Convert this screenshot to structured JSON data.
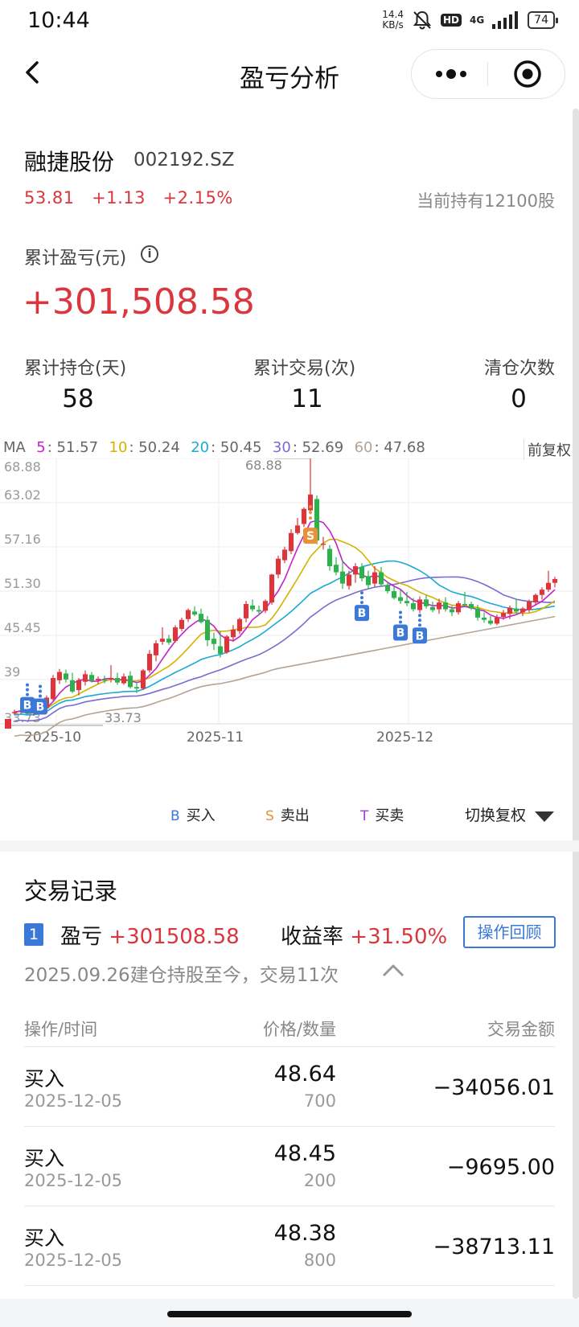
{
  "status_bar": {
    "time": "10:44",
    "speed": "14.4",
    "speed_unit": "KB/s",
    "hd": "HD",
    "network": "4G",
    "battery": "74"
  },
  "nav": {
    "title": "盈亏分析",
    "icons": [
      "back-chevron-icon",
      "more-dots-icon",
      "target-icon"
    ]
  },
  "stock": {
    "name": "融捷股份",
    "code": "002192.SZ",
    "price": "53.81",
    "change": "+1.13",
    "change_pct": "+2.15%",
    "holding": "当前持有12100股"
  },
  "pnl": {
    "label": "累计盈亏(元)",
    "info_glyph": "i",
    "value": "+301,508.58"
  },
  "stats": [
    {
      "label": "累计持仓(天)",
      "value": "58"
    },
    {
      "label": "累计交易(次)",
      "value": "11"
    },
    {
      "label": "清仓次数",
      "value": "0"
    }
  ],
  "ma": {
    "prefix": "MA",
    "items": [
      {
        "key": "5",
        "value": "51.57",
        "color": "#c71fcf"
      },
      {
        "key": "10",
        "value": "50.24",
        "color": "#d4b200"
      },
      {
        "key": "20",
        "value": "50.45",
        "color": "#1ba9d6"
      },
      {
        "key": "30",
        "value": "52.69",
        "color": "#7a6bd1"
      },
      {
        "key": "60",
        "value": "47.68",
        "color": "#b3a395"
      }
    ],
    "adjust": "前复权"
  },
  "chart_data": {
    "type": "candlestick",
    "y_ticks": [
      "68.88",
      "63.02",
      "57.16",
      "51.30",
      "45.45",
      "39",
      "33.73"
    ],
    "ylim": [
      33.73,
      68.88
    ],
    "x_ticks": [
      "2025-10",
      "2025-11",
      "2025-12"
    ],
    "max_label": "68.88",
    "min_label": "33.73",
    "colors": {
      "up": "#e0333a",
      "down": "#2bb34b"
    },
    "candles": [
      [
        35.2,
        35.6,
        34.9,
        35.3
      ],
      [
        35.3,
        35.8,
        35.0,
        35.5
      ],
      [
        35.4,
        35.7,
        35.0,
        35.1
      ],
      [
        35.1,
        35.6,
        34.8,
        35.4
      ],
      [
        35.3,
        36.0,
        35.1,
        35.9
      ],
      [
        35.8,
        37.5,
        35.6,
        37.2
      ],
      [
        37.0,
        40.2,
        36.8,
        39.8
      ],
      [
        39.5,
        41.0,
        39.0,
        40.6
      ],
      [
        40.4,
        40.9,
        39.2,
        39.6
      ],
      [
        39.5,
        40.5,
        37.8,
        38.0
      ],
      [
        38.2,
        39.8,
        37.5,
        39.5
      ],
      [
        39.3,
        40.8,
        38.8,
        40.3
      ],
      [
        40.2,
        40.6,
        39.2,
        39.4
      ],
      [
        39.5,
        40.0,
        39.0,
        39.7
      ],
      [
        39.6,
        40.1,
        39.1,
        39.5
      ],
      [
        39.6,
        41.5,
        39.2,
        39.8
      ],
      [
        39.8,
        40.5,
        38.9,
        39.2
      ],
      [
        39.1,
        40.4,
        38.9,
        40.0
      ],
      [
        40.1,
        40.7,
        38.4,
        38.6
      ],
      [
        38.6,
        39.2,
        37.8,
        38.4
      ],
      [
        38.4,
        41.0,
        38.2,
        40.8
      ],
      [
        40.8,
        43.5,
        40.5,
        43.0
      ],
      [
        42.8,
        44.8,
        42.0,
        44.4
      ],
      [
        44.6,
        46.5,
        44.2,
        45.0
      ],
      [
        45.0,
        45.5,
        44.2,
        44.5
      ],
      [
        44.7,
        46.8,
        44.5,
        46.5
      ],
      [
        46.3,
        47.8,
        46.0,
        47.5
      ],
      [
        47.6,
        49.0,
        47.2,
        48.8
      ],
      [
        48.6,
        49.3,
        48.0,
        48.2
      ],
      [
        48.3,
        49.0,
        47.0,
        47.2
      ],
      [
        47.5,
        48.0,
        44.0,
        44.8
      ],
      [
        45.0,
        45.8,
        43.5,
        44.3
      ],
      [
        44.0,
        46.0,
        42.5,
        43.0
      ],
      [
        43.2,
        45.5,
        43.0,
        45.3
      ],
      [
        45.2,
        46.8,
        44.6,
        46.2
      ],
      [
        46.0,
        47.8,
        45.6,
        47.6
      ],
      [
        47.7,
        50.0,
        47.2,
        49.6
      ],
      [
        49.4,
        50.2,
        48.6,
        48.9
      ],
      [
        48.8,
        49.4,
        48.1,
        48.6
      ],
      [
        48.7,
        50.2,
        48.4,
        50.0
      ],
      [
        49.8,
        53.6,
        49.5,
        53.5
      ],
      [
        53.5,
        56.0,
        53.0,
        55.6
      ],
      [
        55.4,
        57.2,
        55.0,
        56.8
      ],
      [
        56.6,
        59.5,
        56.2,
        59.0
      ],
      [
        59.0,
        61.0,
        58.8,
        60.0
      ],
      [
        60.2,
        62.4,
        59.8,
        62.2
      ],
      [
        62.0,
        68.88,
        61.5,
        64.1
      ],
      [
        63.5,
        64.0,
        57.5,
        58.0
      ],
      [
        57.5,
        58.5,
        56.8,
        57.6
      ],
      [
        56.9,
        57.4,
        54.0,
        54.6
      ],
      [
        54.8,
        55.8,
        53.4,
        53.8
      ],
      [
        53.9,
        55.4,
        51.6,
        52.3
      ],
      [
        52.0,
        54.0,
        51.5,
        53.5
      ],
      [
        53.5,
        55.0,
        52.4,
        54.6
      ],
      [
        54.5,
        55.0,
        52.6,
        53.0
      ],
      [
        53.3,
        54.0,
        51.6,
        52.1
      ],
      [
        52.3,
        54.6,
        51.9,
        53.8
      ],
      [
        53.8,
        54.5,
        52.0,
        52.2
      ],
      [
        52.1,
        52.6,
        51.0,
        51.3
      ],
      [
        51.3,
        51.9,
        50.2,
        50.4
      ],
      [
        50.5,
        51.5,
        49.6,
        50.0
      ],
      [
        50.0,
        51.2,
        49.3,
        49.7
      ],
      [
        49.7,
        50.4,
        48.6,
        48.9
      ],
      [
        48.8,
        50.6,
        48.4,
        50.2
      ],
      [
        50.2,
        50.8,
        49.0,
        49.3
      ],
      [
        49.2,
        49.9,
        48.5,
        48.8
      ],
      [
        48.9,
        50.3,
        48.3,
        49.8
      ],
      [
        49.8,
        50.5,
        48.6,
        48.9
      ],
      [
        48.9,
        49.4,
        48.0,
        48.5
      ],
      [
        48.5,
        50.0,
        48.2,
        49.7
      ],
      [
        49.6,
        51.2,
        49.2,
        49.4
      ],
      [
        49.6,
        49.9,
        48.8,
        49.0
      ],
      [
        49.0,
        49.5,
        47.4,
        47.8
      ],
      [
        47.8,
        48.5,
        47.1,
        47.5
      ],
      [
        47.4,
        48.0,
        46.8,
        47.0
      ],
      [
        47.0,
        48.2,
        46.8,
        47.8
      ],
      [
        47.9,
        48.8,
        47.5,
        48.4
      ],
      [
        48.3,
        49.4,
        47.6,
        49.1
      ],
      [
        49.0,
        50.3,
        48.2,
        48.6
      ],
      [
        48.5,
        49.2,
        48.0,
        49.0
      ],
      [
        48.8,
        50.2,
        48.5,
        49.9
      ],
      [
        49.8,
        51.0,
        49.4,
        50.8
      ],
      [
        50.8,
        51.8,
        50.2,
        51.5
      ],
      [
        51.5,
        54.0,
        51.2,
        52.4
      ],
      [
        52.4,
        53.2,
        51.8,
        52.9
      ]
    ],
    "markers": [
      {
        "type": "B",
        "index": 2,
        "price": 39.2
      },
      {
        "type": "B",
        "index": 4,
        "price": 39.0
      },
      {
        "type": "S",
        "index": 46,
        "price": 59.5
      },
      {
        "type": "B",
        "index": 54,
        "price": 51.4
      },
      {
        "type": "B",
        "index": 60,
        "price": 48.8
      },
      {
        "type": "B",
        "index": 63,
        "price": 48.4
      }
    ]
  },
  "legend": {
    "buy_key": "B",
    "buy": "买入",
    "sell_key": "S",
    "sell": "卖出",
    "both_key": "T",
    "both": "买卖",
    "switch": "切换复权"
  },
  "records": {
    "title": "交易记录",
    "index": "1",
    "pnl_label": "盈亏",
    "pnl_value": "+301508.58",
    "return_label": "收益率",
    "return_value": "+31.50%",
    "replay": "操作回顾",
    "since": "2025.09.26建仓持股至今，交易11次",
    "headers": [
      "操作/时间",
      "价格/数量",
      "交易金额"
    ],
    "rows": [
      {
        "op": "买入",
        "date": "2025-12-05",
        "price": "48.64",
        "qty": "700",
        "amount": "−34056.01"
      },
      {
        "op": "买入",
        "date": "2025-12-05",
        "price": "48.45",
        "qty": "200",
        "amount": "−9695.00"
      },
      {
        "op": "买入",
        "date": "2025-12-05",
        "price": "48.38",
        "qty": "800",
        "amount": "−38713.11"
      }
    ]
  }
}
